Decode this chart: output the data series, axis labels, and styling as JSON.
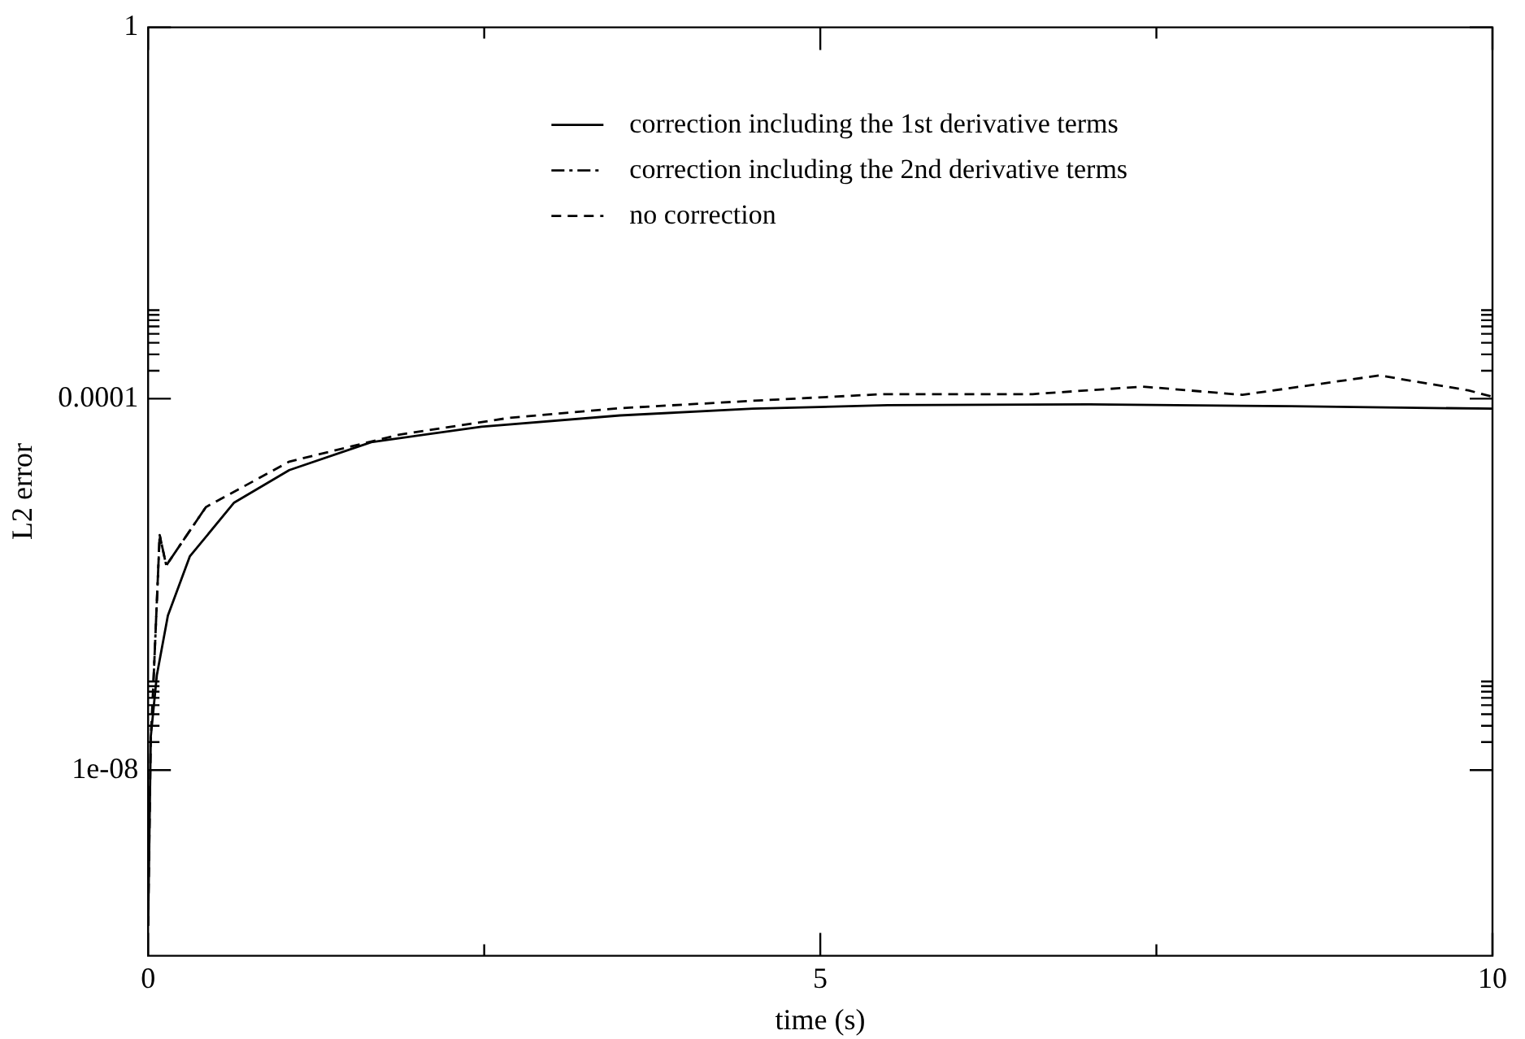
{
  "chart_data": {
    "type": "line",
    "xlabel": "time (s)",
    "ylabel": "L2 error",
    "log": "y",
    "xlim": [
      0,
      10
    ],
    "xticks": [
      0,
      {
        "value": 2.5,
        "label": null
      },
      5,
      {
        "value": 7.5,
        "label": null
      },
      10
    ],
    "ylim": [
      1e-10,
      1
    ],
    "yticks": [
      {
        "value": 1e-08,
        "label": "1e-08"
      },
      {
        "value": 2e-08,
        "label": null
      },
      {
        "value": 3e-08,
        "label": null
      },
      {
        "value": 4e-08,
        "label": null
      },
      {
        "value": 5e-08,
        "label": null
      },
      {
        "value": 6e-08,
        "label": null
      },
      {
        "value": 7e-08,
        "label": null
      },
      {
        "value": 8e-08,
        "label": null
      },
      {
        "value": 9e-08,
        "label": null
      },
      {
        "value": 0.0001,
        "label": "0.0001"
      },
      {
        "value": 0.0002,
        "label": null
      },
      {
        "value": 0.0003,
        "label": null
      },
      {
        "value": 0.0004,
        "label": null
      },
      {
        "value": 0.0005,
        "label": null
      },
      {
        "value": 0.0006,
        "label": null
      },
      {
        "value": 0.0007,
        "label": null
      },
      {
        "value": 0.0008,
        "label": null
      },
      {
        "value": 0.0009,
        "label": null
      },
      1
    ],
    "grid": false,
    "legend": "top right",
    "marker": "none",
    "series": [
      {
        "name": "correction including the 1st derivative terms",
        "color": "#000000",
        "line_style": "solid",
        "x": [
          0,
          0.02,
          0.065,
          0.147,
          0.31,
          0.64,
          1.05,
          1.66,
          2.48,
          3.51,
          4.5,
          5.5,
          7,
          8.5,
          10
        ],
        "values": [
          2.1e-10,
          2.3e-08,
          1.05e-07,
          4.6e-07,
          2e-06,
          7.6e-06,
          1.7e-05,
          3.4e-05,
          5e-05,
          6.6e-05,
          7.8e-05,
          8.5e-05,
          8.7e-05,
          8.3e-05,
          7.8e-05
        ]
      },
      {
        "name": "correction including the 2nd derivative terms",
        "color": "#000000",
        "line_style": "dashdot",
        "x": [
          0.04,
          0.086,
          0.135,
          0.43
        ],
        "values": [
          9e-08,
          3.4e-06,
          1.6e-06,
          6.8e-06
        ]
      },
      {
        "name": "no correction",
        "color": "#000000",
        "line_style": "dashed",
        "x": [
          0,
          0.02,
          0.04,
          0.086,
          0.135,
          0.43,
          1.05,
          1.87,
          2.68,
          3.51,
          4.5,
          5.47,
          6.58,
          7.4,
          8.14,
          9.16,
          9.82,
          10
        ],
        "values": [
          2.1e-10,
          2.3e-08,
          9e-08,
          3.4e-06,
          1.6e-06,
          6.8e-06,
          2.1e-05,
          4.1e-05,
          6.2e-05,
          7.9e-05,
          9.5e-05,
          0.000112,
          0.000112,
          0.000135,
          0.00011,
          0.000178,
          0.000123,
          0.000105
        ]
      }
    ]
  }
}
